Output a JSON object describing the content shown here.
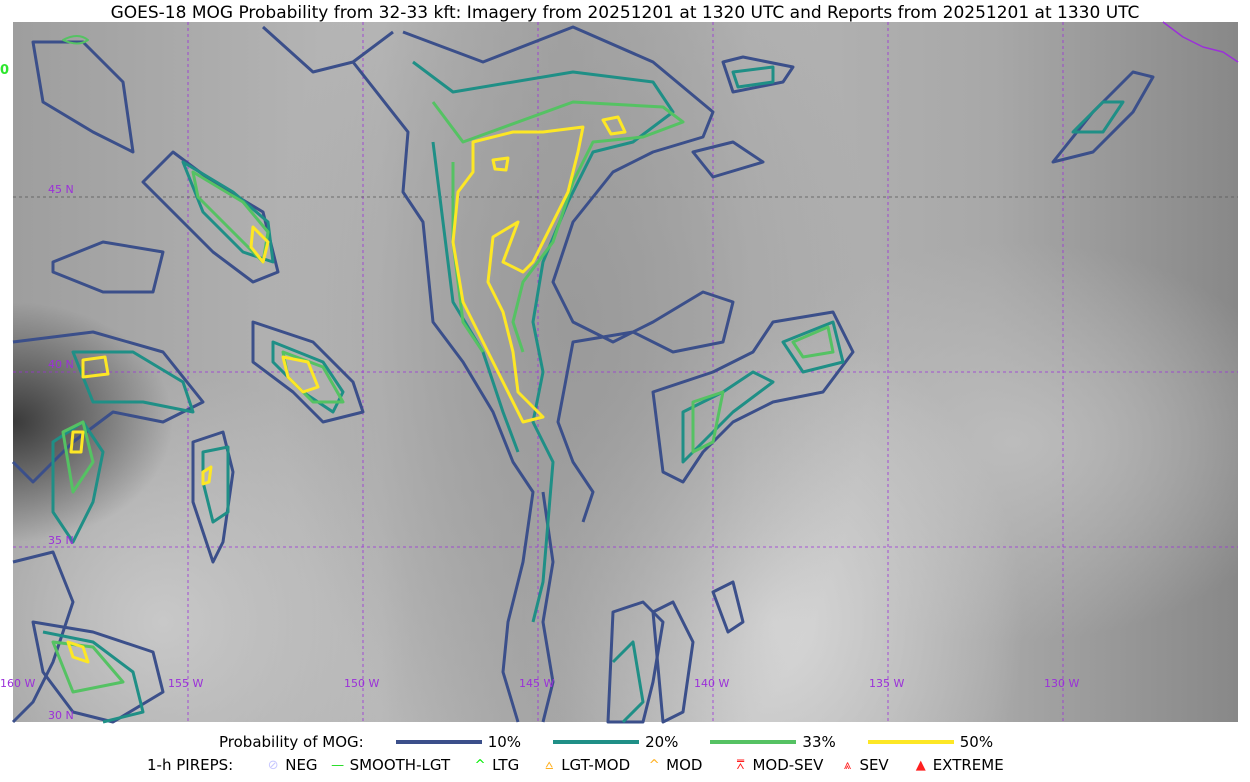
{
  "title": "GOES-18 MOG Probability from 32-33 kft: Imagery from 20251201 at 1320 UTC and Reports from 20251201 at 1330 UTC",
  "map": {
    "longitude_labels": [
      "160 W",
      "155 W",
      "150 W",
      "145 W",
      "140 W",
      "135 W",
      "130 W"
    ],
    "latitude_labels": [
      "45 N",
      "40 N",
      "35 N",
      "30 N"
    ],
    "edge_pirep_label": "0",
    "gridline_color": "#9b30d9"
  },
  "legend": {
    "probability_title": "Probability of MOG:",
    "probability_levels": [
      {
        "label": "10%",
        "color": "#3b4f8a"
      },
      {
        "label": "20%",
        "color": "#1f8f86"
      },
      {
        "label": "33%",
        "color": "#55c263"
      },
      {
        "label": "50%",
        "color": "#fde725"
      }
    ],
    "pireps_title": "1-h PIREPS:",
    "pireps": [
      {
        "label": "NEG",
        "color": "#c8c8ff",
        "icon": "neg-circle-icon"
      },
      {
        "label": "SMOOTH-LGT",
        "color": "#22dd22",
        "icon": "dash-icon"
      },
      {
        "label": "LTG",
        "color": "#00ee00",
        "icon": "caret-icon"
      },
      {
        "label": "LGT-MOD",
        "color": "#ffb020",
        "icon": "caret-bar-icon"
      },
      {
        "label": "MOD",
        "color": "#ffb020",
        "icon": "caret-icon"
      },
      {
        "label": "MOD-SEV",
        "color": "#ff2020",
        "icon": "double-caret-bar-icon"
      },
      {
        "label": "SEV",
        "color": "#ff2020",
        "icon": "double-caret-icon"
      },
      {
        "label": "EXTREME",
        "color": "#ff2020",
        "icon": "filled-triangle-icon"
      }
    ]
  }
}
